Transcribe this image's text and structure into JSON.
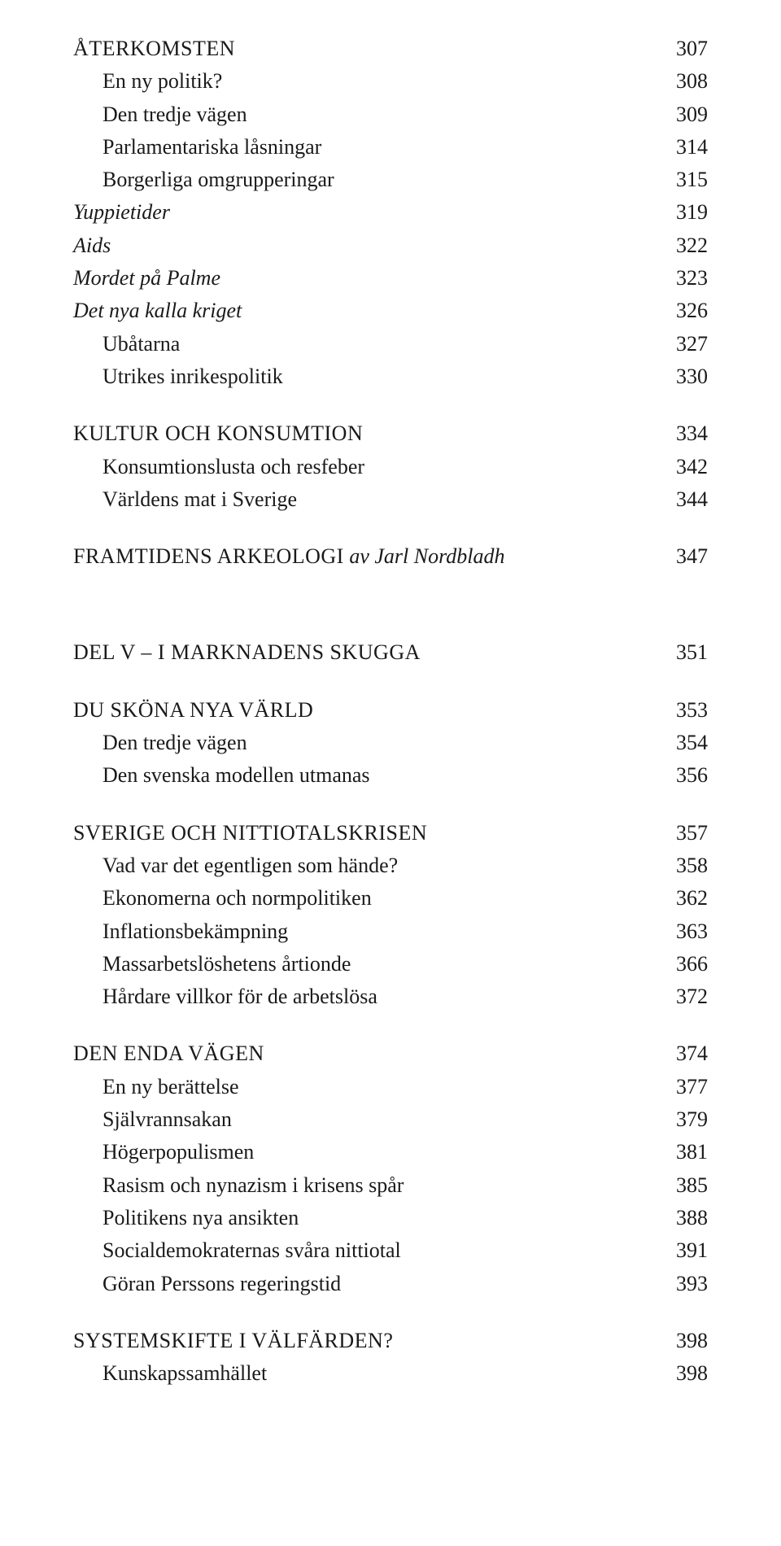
{
  "s1": {
    "h": {
      "label": "ÅTERKOMSTEN",
      "page": "307"
    },
    "items": [
      {
        "label": "En ny politik?",
        "page": "308",
        "italic": false,
        "sub": true
      },
      {
        "label": "Den tredje vägen",
        "page": "309",
        "italic": false,
        "sub": true
      },
      {
        "label": "Parlamentariska låsningar",
        "page": "314",
        "italic": false,
        "sub": true
      },
      {
        "label": "Borgerliga omgrupperingar",
        "page": "315",
        "italic": false,
        "sub": true
      },
      {
        "label": "Yuppietider",
        "page": "319",
        "italic": true,
        "sub": false
      },
      {
        "label": "Aids",
        "page": "322",
        "italic": true,
        "sub": false
      },
      {
        "label": "Mordet på Palme",
        "page": "323",
        "italic": true,
        "sub": false
      },
      {
        "label": "Det nya kalla kriget",
        "page": "326",
        "italic": true,
        "sub": false
      },
      {
        "label": "Ubåtarna",
        "page": "327",
        "italic": false,
        "sub": true
      },
      {
        "label": "Utrikes inrikespolitik",
        "page": "330",
        "italic": false,
        "sub": true
      }
    ]
  },
  "s2": {
    "h": {
      "label": "KULTUR OCH KONSUMTION",
      "page": "334"
    },
    "items": [
      {
        "label": "Konsumtionslusta och resfeber",
        "page": "342",
        "italic": false,
        "sub": true
      },
      {
        "label": "Världens mat i Sverige",
        "page": "344",
        "italic": false,
        "sub": true
      }
    ]
  },
  "s3": {
    "label_prefix": "FRAMTIDENS ARKEOLOGI",
    "label_suffix": " av Jarl Nordbladh",
    "page": "347"
  },
  "s4": {
    "h": {
      "label": "DEL V – I MARKNADENS SKUGGA",
      "page": "351"
    }
  },
  "s5": {
    "h": {
      "label": "DU SKÖNA NYA VÄRLD",
      "page": "353"
    },
    "items": [
      {
        "label": "Den tredje vägen",
        "page": "354",
        "italic": false,
        "sub": true
      },
      {
        "label": "Den svenska modellen utmanas",
        "page": "356",
        "italic": false,
        "sub": true
      }
    ]
  },
  "s6": {
    "h": {
      "label": "SVERIGE OCH NITTIOTALSKRISEN",
      "page": "357"
    },
    "items": [
      {
        "label": "Vad var det egentligen som hände?",
        "page": "358",
        "italic": false,
        "sub": true
      },
      {
        "label": "Ekonomerna och normpolitiken",
        "page": "362",
        "italic": false,
        "sub": true
      },
      {
        "label": "Inflationsbekämpning",
        "page": "363",
        "italic": false,
        "sub": true
      },
      {
        "label": "Massarbetslöshetens årtionde",
        "page": "366",
        "italic": false,
        "sub": true
      },
      {
        "label": "Hårdare villkor för de arbetslösa",
        "page": "372",
        "italic": false,
        "sub": true
      }
    ]
  },
  "s7": {
    "h": {
      "label": "DEN ENDA VÄGEN",
      "page": "374"
    },
    "items": [
      {
        "label": "En ny berättelse",
        "page": "377",
        "italic": false,
        "sub": true
      },
      {
        "label": "Självrannsakan",
        "page": "379",
        "italic": false,
        "sub": true
      },
      {
        "label": "Högerpopulismen",
        "page": "381",
        "italic": false,
        "sub": true
      },
      {
        "label": "Rasism och nynazism i krisens spår",
        "page": "385",
        "italic": false,
        "sub": true
      },
      {
        "label": "Politikens nya ansikten",
        "page": "388",
        "italic": false,
        "sub": true
      },
      {
        "label": "Socialdemokraternas svåra nittiotal",
        "page": "391",
        "italic": false,
        "sub": true
      },
      {
        "label": "Göran Perssons regeringstid",
        "page": "393",
        "italic": false,
        "sub": true
      }
    ]
  },
  "s8": {
    "h": {
      "label": "SYSTEMSKIFTE I VÄLFÄRDEN?",
      "page": "398"
    },
    "items": [
      {
        "label": "Kunskapssamhället",
        "page": "398",
        "italic": false,
        "sub": true
      }
    ]
  }
}
